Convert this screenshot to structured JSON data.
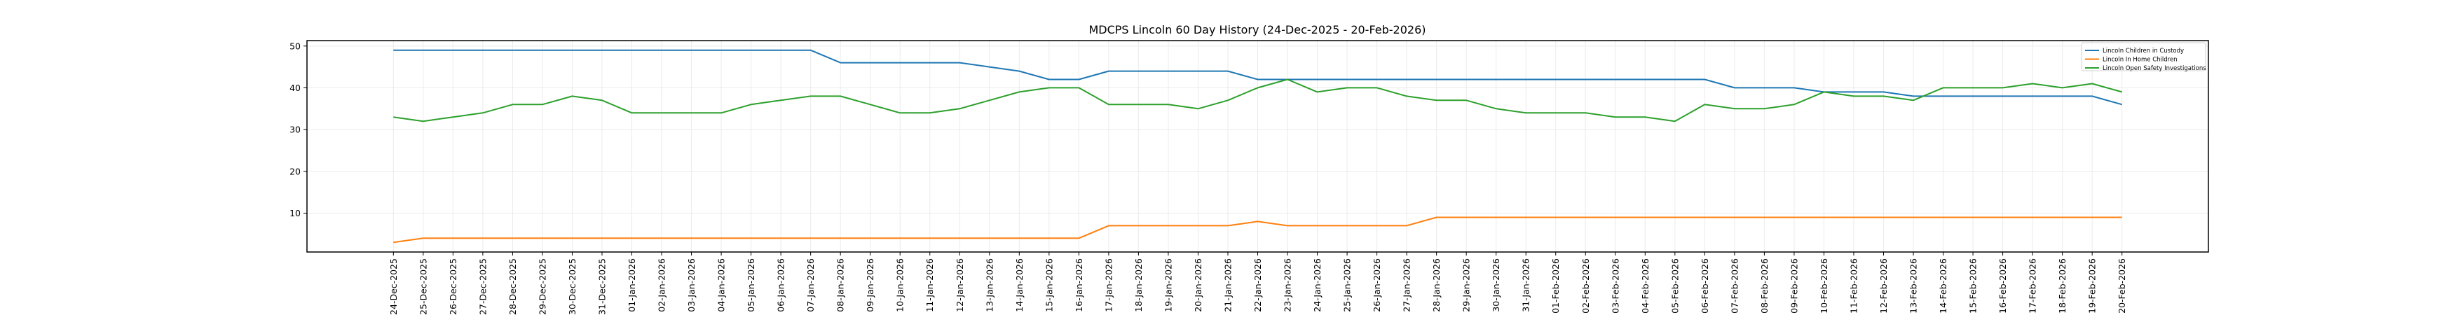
{
  "chart_data": {
    "type": "line",
    "title": "MDCPS Lincoln 60 Day History (24-Dec-2025 - 20-Feb-2026)",
    "xlabel": "",
    "ylabel": "",
    "ylim": [
      0.7,
      51.3
    ],
    "yticks": [
      10,
      20,
      30,
      40,
      50
    ],
    "grid": true,
    "legend_position": "top-right",
    "x": [
      "24-Dec-2025",
      "25-Dec-2025",
      "26-Dec-2025",
      "27-Dec-2025",
      "28-Dec-2025",
      "29-Dec-2025",
      "30-Dec-2025",
      "31-Dec-2025",
      "01-Jan-2026",
      "02-Jan-2026",
      "03-Jan-2026",
      "04-Jan-2026",
      "05-Jan-2026",
      "06-Jan-2026",
      "07-Jan-2026",
      "08-Jan-2026",
      "09-Jan-2026",
      "10-Jan-2026",
      "11-Jan-2026",
      "12-Jan-2026",
      "13-Jan-2026",
      "14-Jan-2026",
      "15-Jan-2026",
      "16-Jan-2026",
      "17-Jan-2026",
      "18-Jan-2026",
      "19-Jan-2026",
      "20-Jan-2026",
      "21-Jan-2026",
      "22-Jan-2026",
      "23-Jan-2026",
      "24-Jan-2026",
      "25-Jan-2026",
      "26-Jan-2026",
      "27-Jan-2026",
      "28-Jan-2026",
      "29-Jan-2026",
      "30-Jan-2026",
      "31-Jan-2026",
      "01-Feb-2026",
      "02-Feb-2026",
      "03-Feb-2026",
      "04-Feb-2026",
      "05-Feb-2026",
      "06-Feb-2026",
      "07-Feb-2026",
      "08-Feb-2026",
      "09-Feb-2026",
      "10-Feb-2026",
      "11-Feb-2026",
      "12-Feb-2026",
      "13-Feb-2026",
      "14-Feb-2026",
      "15-Feb-2026",
      "16-Feb-2026",
      "17-Feb-2026",
      "18-Feb-2026",
      "19-Feb-2026",
      "20-Feb-2026"
    ],
    "series": [
      {
        "name": "Lincoln Children in Custody",
        "color": "#1f77b4",
        "values": [
          49,
          49,
          49,
          49,
          49,
          49,
          49,
          49,
          49,
          49,
          49,
          49,
          49,
          49,
          49,
          46,
          46,
          46,
          46,
          46,
          45,
          44,
          42,
          42,
          44,
          44,
          44,
          44,
          44,
          42,
          42,
          42,
          42,
          42,
          42,
          42,
          42,
          42,
          42,
          42,
          42,
          42,
          42,
          42,
          42,
          40,
          40,
          40,
          39,
          39,
          39,
          38,
          38,
          38,
          38,
          38,
          38,
          38,
          36
        ]
      },
      {
        "name": "Lincoln In Home Children",
        "color": "#ff7f0e",
        "values": [
          3,
          4,
          4,
          4,
          4,
          4,
          4,
          4,
          4,
          4,
          4,
          4,
          4,
          4,
          4,
          4,
          4,
          4,
          4,
          4,
          4,
          4,
          4,
          4,
          7,
          7,
          7,
          7,
          7,
          8,
          7,
          7,
          7,
          7,
          7,
          9,
          9,
          9,
          9,
          9,
          9,
          9,
          9,
          9,
          9,
          9,
          9,
          9,
          9,
          9,
          9,
          9,
          9,
          9,
          9,
          9,
          9,
          9,
          9
        ]
      },
      {
        "name": "Lincoln Open Safety Investigations",
        "color": "#2ca02c",
        "values": [
          33,
          32,
          33,
          34,
          36,
          36,
          38,
          37,
          34,
          34,
          34,
          34,
          36,
          37,
          38,
          38,
          36,
          34,
          34,
          35,
          37,
          39,
          40,
          40,
          36,
          36,
          36,
          35,
          37,
          40,
          42,
          39,
          40,
          40,
          38,
          37,
          37,
          35,
          34,
          34,
          34,
          33,
          33,
          32,
          36,
          35,
          35,
          36,
          39,
          38,
          38,
          37,
          40,
          40,
          40,
          41,
          40,
          41,
          39
        ]
      }
    ]
  }
}
